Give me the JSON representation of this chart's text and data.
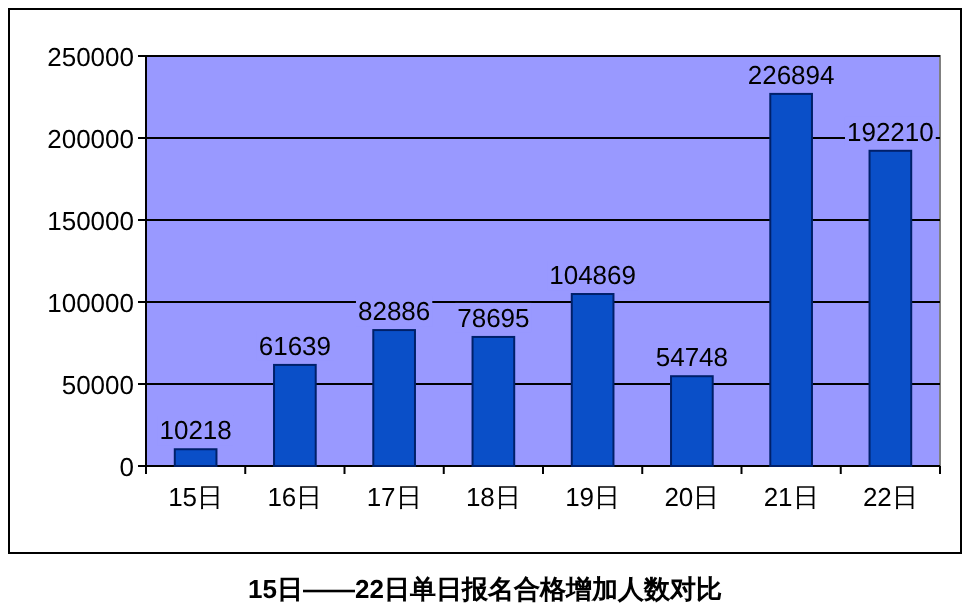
{
  "chart_data": {
    "type": "bar",
    "title": "15日——22日单日报名合格增加人数对比",
    "categories": [
      "15日",
      "16日",
      "17日",
      "18日",
      "19日",
      "20日",
      "21日",
      "22日"
    ],
    "values": [
      10218,
      61639,
      82886,
      78695,
      104869,
      54748,
      226894,
      192210
    ],
    "color": "#0a4fc8",
    "ylim": [
      0,
      250000
    ],
    "yticks": [
      0,
      50000,
      100000,
      150000,
      200000,
      250000
    ],
    "grid": "y",
    "data_labels": true
  }
}
